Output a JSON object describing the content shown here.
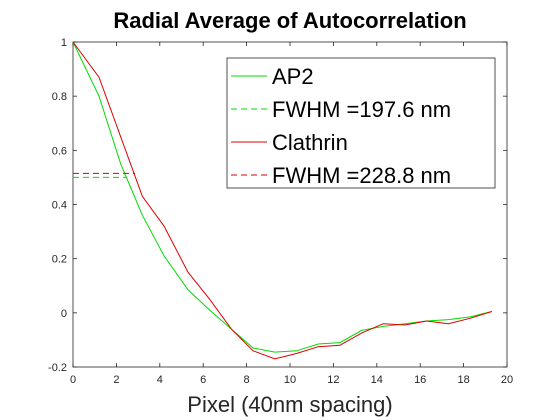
{
  "chart_data": {
    "type": "line",
    "title": "Radial Average of Autocorrelation",
    "xlabel": "Pixel (40nm spacing)",
    "ylabel": "",
    "xlim": [
      0,
      20
    ],
    "ylim": [
      -0.2,
      1
    ],
    "xticks": [
      "0",
      "2",
      "4",
      "6",
      "8",
      "10",
      "12",
      "14",
      "16",
      "18",
      "20"
    ],
    "yticks": [
      "-0.2",
      "0",
      "0.2",
      "0.4",
      "0.6",
      "0.8",
      "1"
    ],
    "grid": false,
    "legend_position": "top-right",
    "series": [
      {
        "name": "AP2",
        "color": "#00dd00",
        "style": "solid",
        "x": [
          0,
          1.2,
          2.2,
          3.2,
          4.2,
          5.3,
          6.3,
          7.3,
          8.3,
          9.3,
          10.3,
          11.3,
          12.3,
          13.3,
          14.3,
          15.3,
          16.3,
          17.3,
          18.3,
          19.3
        ],
        "y": [
          1.0,
          0.8,
          0.55,
          0.36,
          0.21,
          0.085,
          0.01,
          -0.06,
          -0.13,
          -0.145,
          -0.14,
          -0.115,
          -0.11,
          -0.065,
          -0.05,
          -0.04,
          -0.03,
          -0.025,
          -0.015,
          0.005
        ]
      },
      {
        "name": "FWHM =197.6 nm",
        "color": "#00dd00",
        "style": "dashed",
        "x": [
          0,
          2.47
        ],
        "y": [
          0.5,
          0.5
        ]
      },
      {
        "name": "Clathrin",
        "color": "#dd0000",
        "style": "solid",
        "x": [
          0,
          1.2,
          2.2,
          3.2,
          4.2,
          5.3,
          6.3,
          7.3,
          8.3,
          9.3,
          10.3,
          11.3,
          12.3,
          13.3,
          14.3,
          15.3,
          16.3,
          17.3,
          18.3,
          19.3
        ],
        "y": [
          1.0,
          0.87,
          0.65,
          0.43,
          0.32,
          0.15,
          0.05,
          -0.06,
          -0.14,
          -0.17,
          -0.15,
          -0.125,
          -0.12,
          -0.075,
          -0.04,
          -0.045,
          -0.03,
          -0.04,
          -0.02,
          0.005
        ]
      },
      {
        "name": "FWHM =228.8 nm",
        "color": "#dd0000",
        "style": "dashed",
        "x": [
          0,
          2.86
        ],
        "y": [
          0.515,
          0.515
        ]
      }
    ]
  }
}
